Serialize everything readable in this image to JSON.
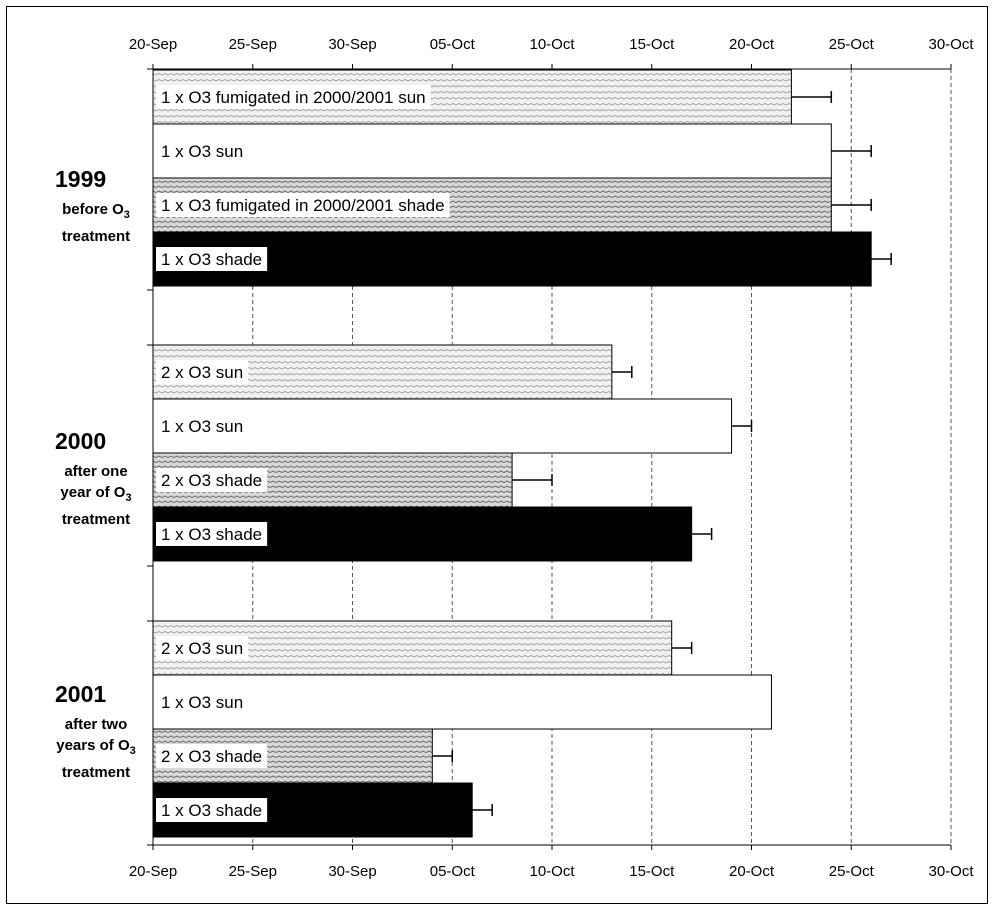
{
  "chart_data": {
    "type": "bar",
    "orientation": "horizontal",
    "x_axis": {
      "tick_labels": [
        "20-Sep",
        "25-Sep",
        "30-Sep",
        "05-Oct",
        "10-Oct",
        "15-Oct",
        "20-Oct",
        "25-Oct",
        "30-Oct"
      ],
      "range": [
        "2000-09-20",
        "2000-10-30"
      ],
      "tick_interval_days": 5,
      "grid": "vertical dashed",
      "position": "top and bottom"
    },
    "groups": [
      {
        "year": "1999",
        "description_lines": [
          "before O3",
          "treatment"
        ],
        "bars": [
          {
            "label": "1 x O3 fumigated in 2000/2001 sun",
            "end": "2000-10-22",
            "error_end": "2000-10-24",
            "fill": "hatched-light"
          },
          {
            "label": "1 x O3 sun",
            "end": "2000-10-24",
            "error_end": "2000-10-26",
            "fill": "white"
          },
          {
            "label": "1 x O3 fumigated in 2000/2001 shade",
            "end": "2000-10-24",
            "error_end": "2000-10-26",
            "fill": "hatched-dark"
          },
          {
            "label": "1 x O3 shade",
            "end": "2000-10-26",
            "error_end": "2000-10-27",
            "fill": "black"
          }
        ]
      },
      {
        "year": "2000",
        "description_lines": [
          "after one",
          "year of O3",
          "treatment"
        ],
        "bars": [
          {
            "label": "2 x O3 sun",
            "end": "2000-10-13",
            "error_end": "2000-10-14",
            "fill": "hatched-light"
          },
          {
            "label": "1 x O3 sun",
            "end": "2000-10-19",
            "error_end": "2000-10-20",
            "fill": "white"
          },
          {
            "label": "2 x O3 shade",
            "end": "2000-10-08",
            "error_end": "2000-10-10",
            "fill": "hatched-dark"
          },
          {
            "label": "1 x O3 shade",
            "end": "2000-10-17",
            "error_end": "2000-10-18",
            "fill": "black"
          }
        ]
      },
      {
        "year": "2001",
        "description_lines": [
          "after two",
          "years of O3",
          "treatment"
        ],
        "bars": [
          {
            "label": "2 x O3 sun",
            "end": "2000-10-16",
            "error_end": "2000-10-17",
            "fill": "hatched-light"
          },
          {
            "label": "1 x O3 sun",
            "end": "2000-10-21",
            "error_end": "2000-10-21",
            "fill": "white"
          },
          {
            "label": "2 x O3 shade",
            "end": "2000-10-04",
            "error_end": "2000-10-05",
            "fill": "hatched-dark"
          },
          {
            "label": "1 x O3 shade",
            "end": "2000-10-06",
            "error_end": "2000-10-07",
            "fill": "black"
          }
        ]
      }
    ]
  }
}
